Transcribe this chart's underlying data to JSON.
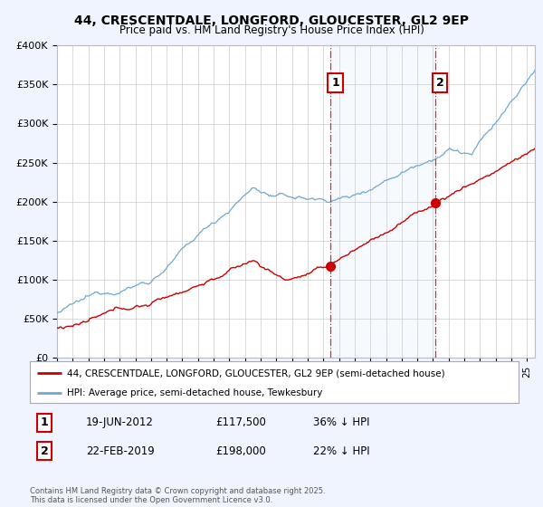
{
  "title": "44, CRESCENTDALE, LONGFORD, GLOUCESTER, GL2 9EP",
  "subtitle": "Price paid vs. HM Land Registry's House Price Index (HPI)",
  "red_label": "44, CRESCENTDALE, LONGFORD, GLOUCESTER, GL2 9EP (semi-detached house)",
  "blue_label": "HPI: Average price, semi-detached house, Tewkesbury",
  "annotation1_date": "19-JUN-2012",
  "annotation1_price": "£117,500",
  "annotation1_pct": "36% ↓ HPI",
  "annotation2_date": "22-FEB-2019",
  "annotation2_price": "£198,000",
  "annotation2_pct": "22% ↓ HPI",
  "vline1_x": 2012.47,
  "vline2_x": 2019.13,
  "footnote": "Contains HM Land Registry data © Crown copyright and database right 2025.\nThis data is licensed under the Open Government Licence v3.0.",
  "ylim": [
    0,
    400000
  ],
  "xlim_start": 1995,
  "xlim_end": 2025.5,
  "background_color": "#f0f4ff",
  "plot_bg_color": "#ffffff",
  "red_color": "#cc0000",
  "blue_color": "#6ea8d0",
  "shade_color": "#ddeeff",
  "vline_color": "#cc0000",
  "grid_color": "#cccccc",
  "title_fontsize": 10,
  "subtitle_fontsize": 8.5
}
